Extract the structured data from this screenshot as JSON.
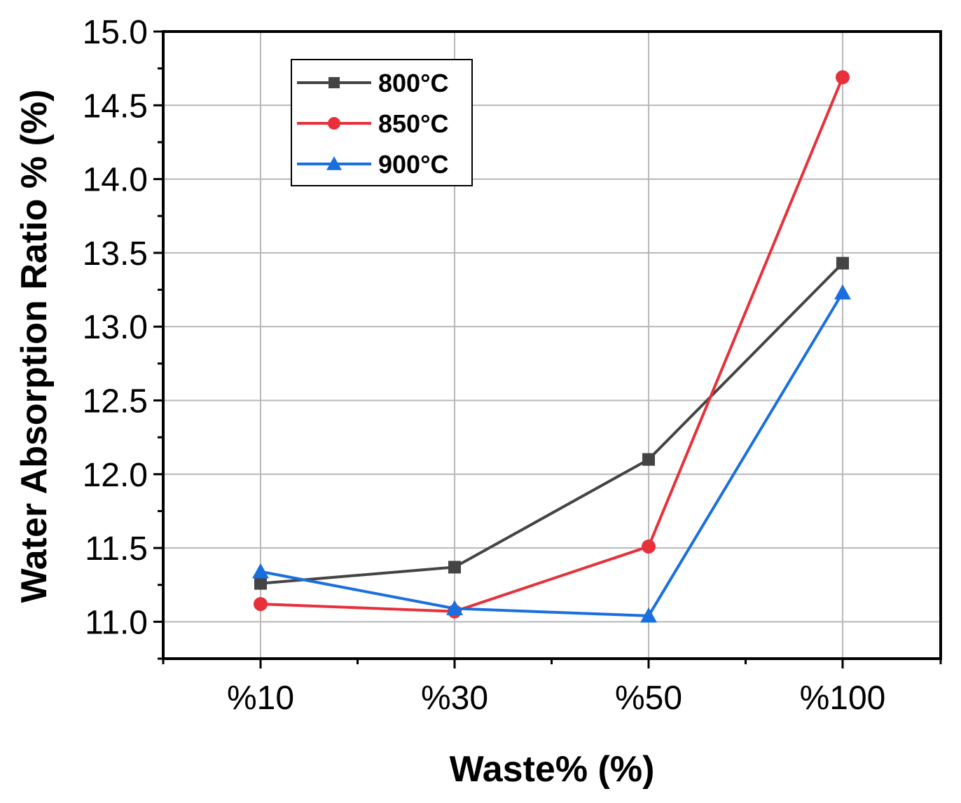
{
  "chart_data": {
    "type": "line",
    "title": "",
    "xlabel": "Waste% (%)",
    "ylabel": "Water Absorption Ratio % (%)",
    "categories": [
      "%10",
      "%30",
      "%50",
      "%100"
    ],
    "ylim": [
      10.75,
      15.0
    ],
    "yticks": [
      11.0,
      11.5,
      12.0,
      12.5,
      13.0,
      13.5,
      14.0,
      14.5,
      15.0
    ],
    "ytick_labels": [
      "11.0",
      "11.5",
      "12.0",
      "12.5",
      "13.0",
      "13.5",
      "14.0",
      "14.5",
      "15.0"
    ],
    "grid": true,
    "legend_position": "top-left",
    "series": [
      {
        "name": "800°C",
        "color": "#444444",
        "marker": "square",
        "values": [
          11.26,
          11.37,
          12.1,
          13.43
        ]
      },
      {
        "name": "850°C",
        "color": "#e8303a",
        "marker": "circle",
        "values": [
          11.12,
          11.07,
          11.51,
          14.69
        ]
      },
      {
        "name": "900°C",
        "color": "#1a6fdf",
        "marker": "triangle",
        "values": [
          11.34,
          11.09,
          11.04,
          13.23
        ]
      }
    ]
  }
}
